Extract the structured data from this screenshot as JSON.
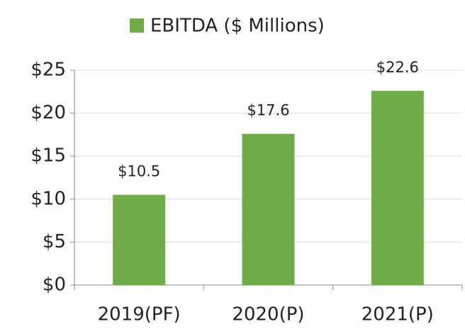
{
  "chart_data": {
    "type": "bar",
    "categories": [
      "2019(PF)",
      "2020(P)",
      "2021(P)"
    ],
    "series": [
      {
        "name": "EBITDA ($ Millions)",
        "color": "#70ad47",
        "values": [
          10.5,
          17.6,
          22.6
        ],
        "value_labels": [
          "$10.5",
          "$17.6",
          "$22.6"
        ]
      }
    ],
    "ylim": [
      0,
      25
    ],
    "yticks": [
      {
        "value": 0,
        "label": "$0"
      },
      {
        "value": 5,
        "label": "$5"
      },
      {
        "value": 10,
        "label": "$10"
      },
      {
        "value": 15,
        "label": "$15"
      },
      {
        "value": 20,
        "label": "$20"
      },
      {
        "value": 25,
        "label": "$25"
      }
    ],
    "grid": true,
    "legend": "top"
  }
}
